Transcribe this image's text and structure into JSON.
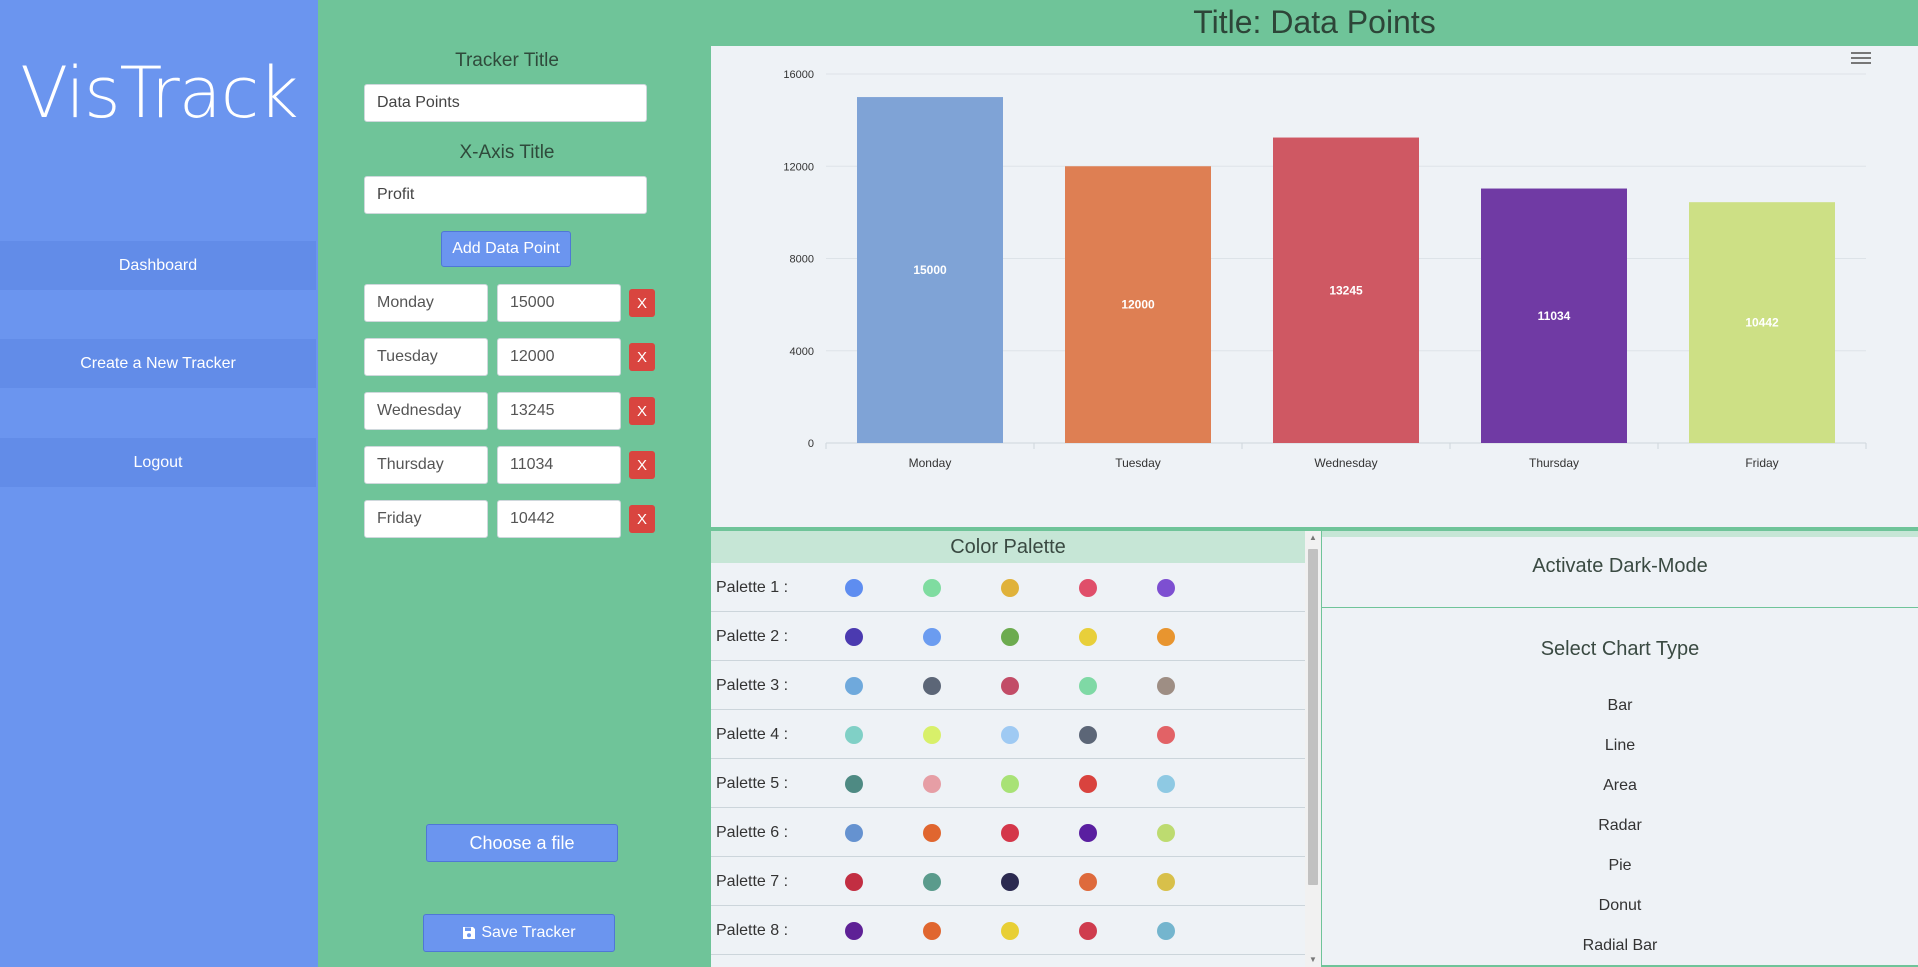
{
  "sidebar": {
    "brand": "VisTrack",
    "nav": [
      {
        "label": "Dashboard"
      },
      {
        "label": "Create a New Tracker"
      },
      {
        "label": "Logout"
      }
    ]
  },
  "form": {
    "tracker_title_label": "Tracker Title",
    "tracker_title_value": "Data Points",
    "xaxis_title_label": "X-Axis Title",
    "xaxis_title_value": "Profit",
    "add_button": "Add Data Point",
    "remove_label": "X",
    "data_points": [
      {
        "label": "Monday",
        "value": "15000"
      },
      {
        "label": "Tuesday",
        "value": "12000"
      },
      {
        "label": "Wednesday",
        "value": "13245"
      },
      {
        "label": "Thursday",
        "value": "11034"
      },
      {
        "label": "Friday",
        "value": "10442"
      }
    ],
    "file_button": "Choose a file",
    "save_button": "Save Tracker"
  },
  "chart_title": "Title: Data Points",
  "chart_data": {
    "type": "bar",
    "title": "Title: Data Points",
    "categories": [
      "Monday",
      "Tuesday",
      "Wednesday",
      "Thursday",
      "Friday"
    ],
    "values": [
      15000,
      12000,
      13245,
      11034,
      10442
    ],
    "colors": [
      "#7fa3d6",
      "#de7f53",
      "#cf5863",
      "#703aa4",
      "#cde085"
    ],
    "yticks": [
      0,
      4000,
      8000,
      12000,
      16000
    ],
    "ylim": [
      0,
      16000
    ],
    "xlabel": "",
    "ylabel": "",
    "grid": true,
    "data_labels": true
  },
  "palette": {
    "header": "Color Palette",
    "rows": [
      {
        "label": "Palette 1 :",
        "colors": [
          "#5e8df0",
          "#7fdca0",
          "#e0b23a",
          "#e04e6a",
          "#7d4fd1"
        ]
      },
      {
        "label": "Palette 2 :",
        "colors": [
          "#4b3ab0",
          "#6b9cf0",
          "#6cab4f",
          "#e8cf3a",
          "#e8952f"
        ]
      },
      {
        "label": "Palette 3 :",
        "colors": [
          "#6fa9dc",
          "#5c6677",
          "#c24c67",
          "#7fd9a5",
          "#9e8e84"
        ]
      },
      {
        "label": "Palette 4 :",
        "colors": [
          "#80d0c6",
          "#d8f06a",
          "#9fcaf3",
          "#5c6677",
          "#e26266"
        ]
      },
      {
        "label": "Palette 5 :",
        "colors": [
          "#4e8a83",
          "#e69ea5",
          "#a8e276",
          "#d9433e",
          "#8ec9e3"
        ]
      },
      {
        "label": "Palette 6 :",
        "colors": [
          "#6592d0",
          "#e0662f",
          "#d4374a",
          "#5a1fa0",
          "#bddb70"
        ]
      },
      {
        "label": "Palette 7 :",
        "colors": [
          "#c22e42",
          "#5a9b8c",
          "#2b2a50",
          "#de6a3c",
          "#d8c04a"
        ]
      },
      {
        "label": "Palette 8 :",
        "colors": [
          "#5e2196",
          "#e0662f",
          "#e8cf35",
          "#cf3c4e",
          "#74b5ce"
        ]
      }
    ]
  },
  "options": {
    "dark_mode": "Activate Dark-Mode",
    "chart_type_heading": "Select Chart Type",
    "chart_types": [
      "Bar",
      "Line",
      "Area",
      "Radar",
      "Pie",
      "Donut",
      "Radial Bar"
    ]
  },
  "colors": {
    "sidebar": "#6b95ef",
    "panel_green": "#6fc499",
    "chart_bg": "#eef2f6",
    "danger": "#d9453f"
  }
}
